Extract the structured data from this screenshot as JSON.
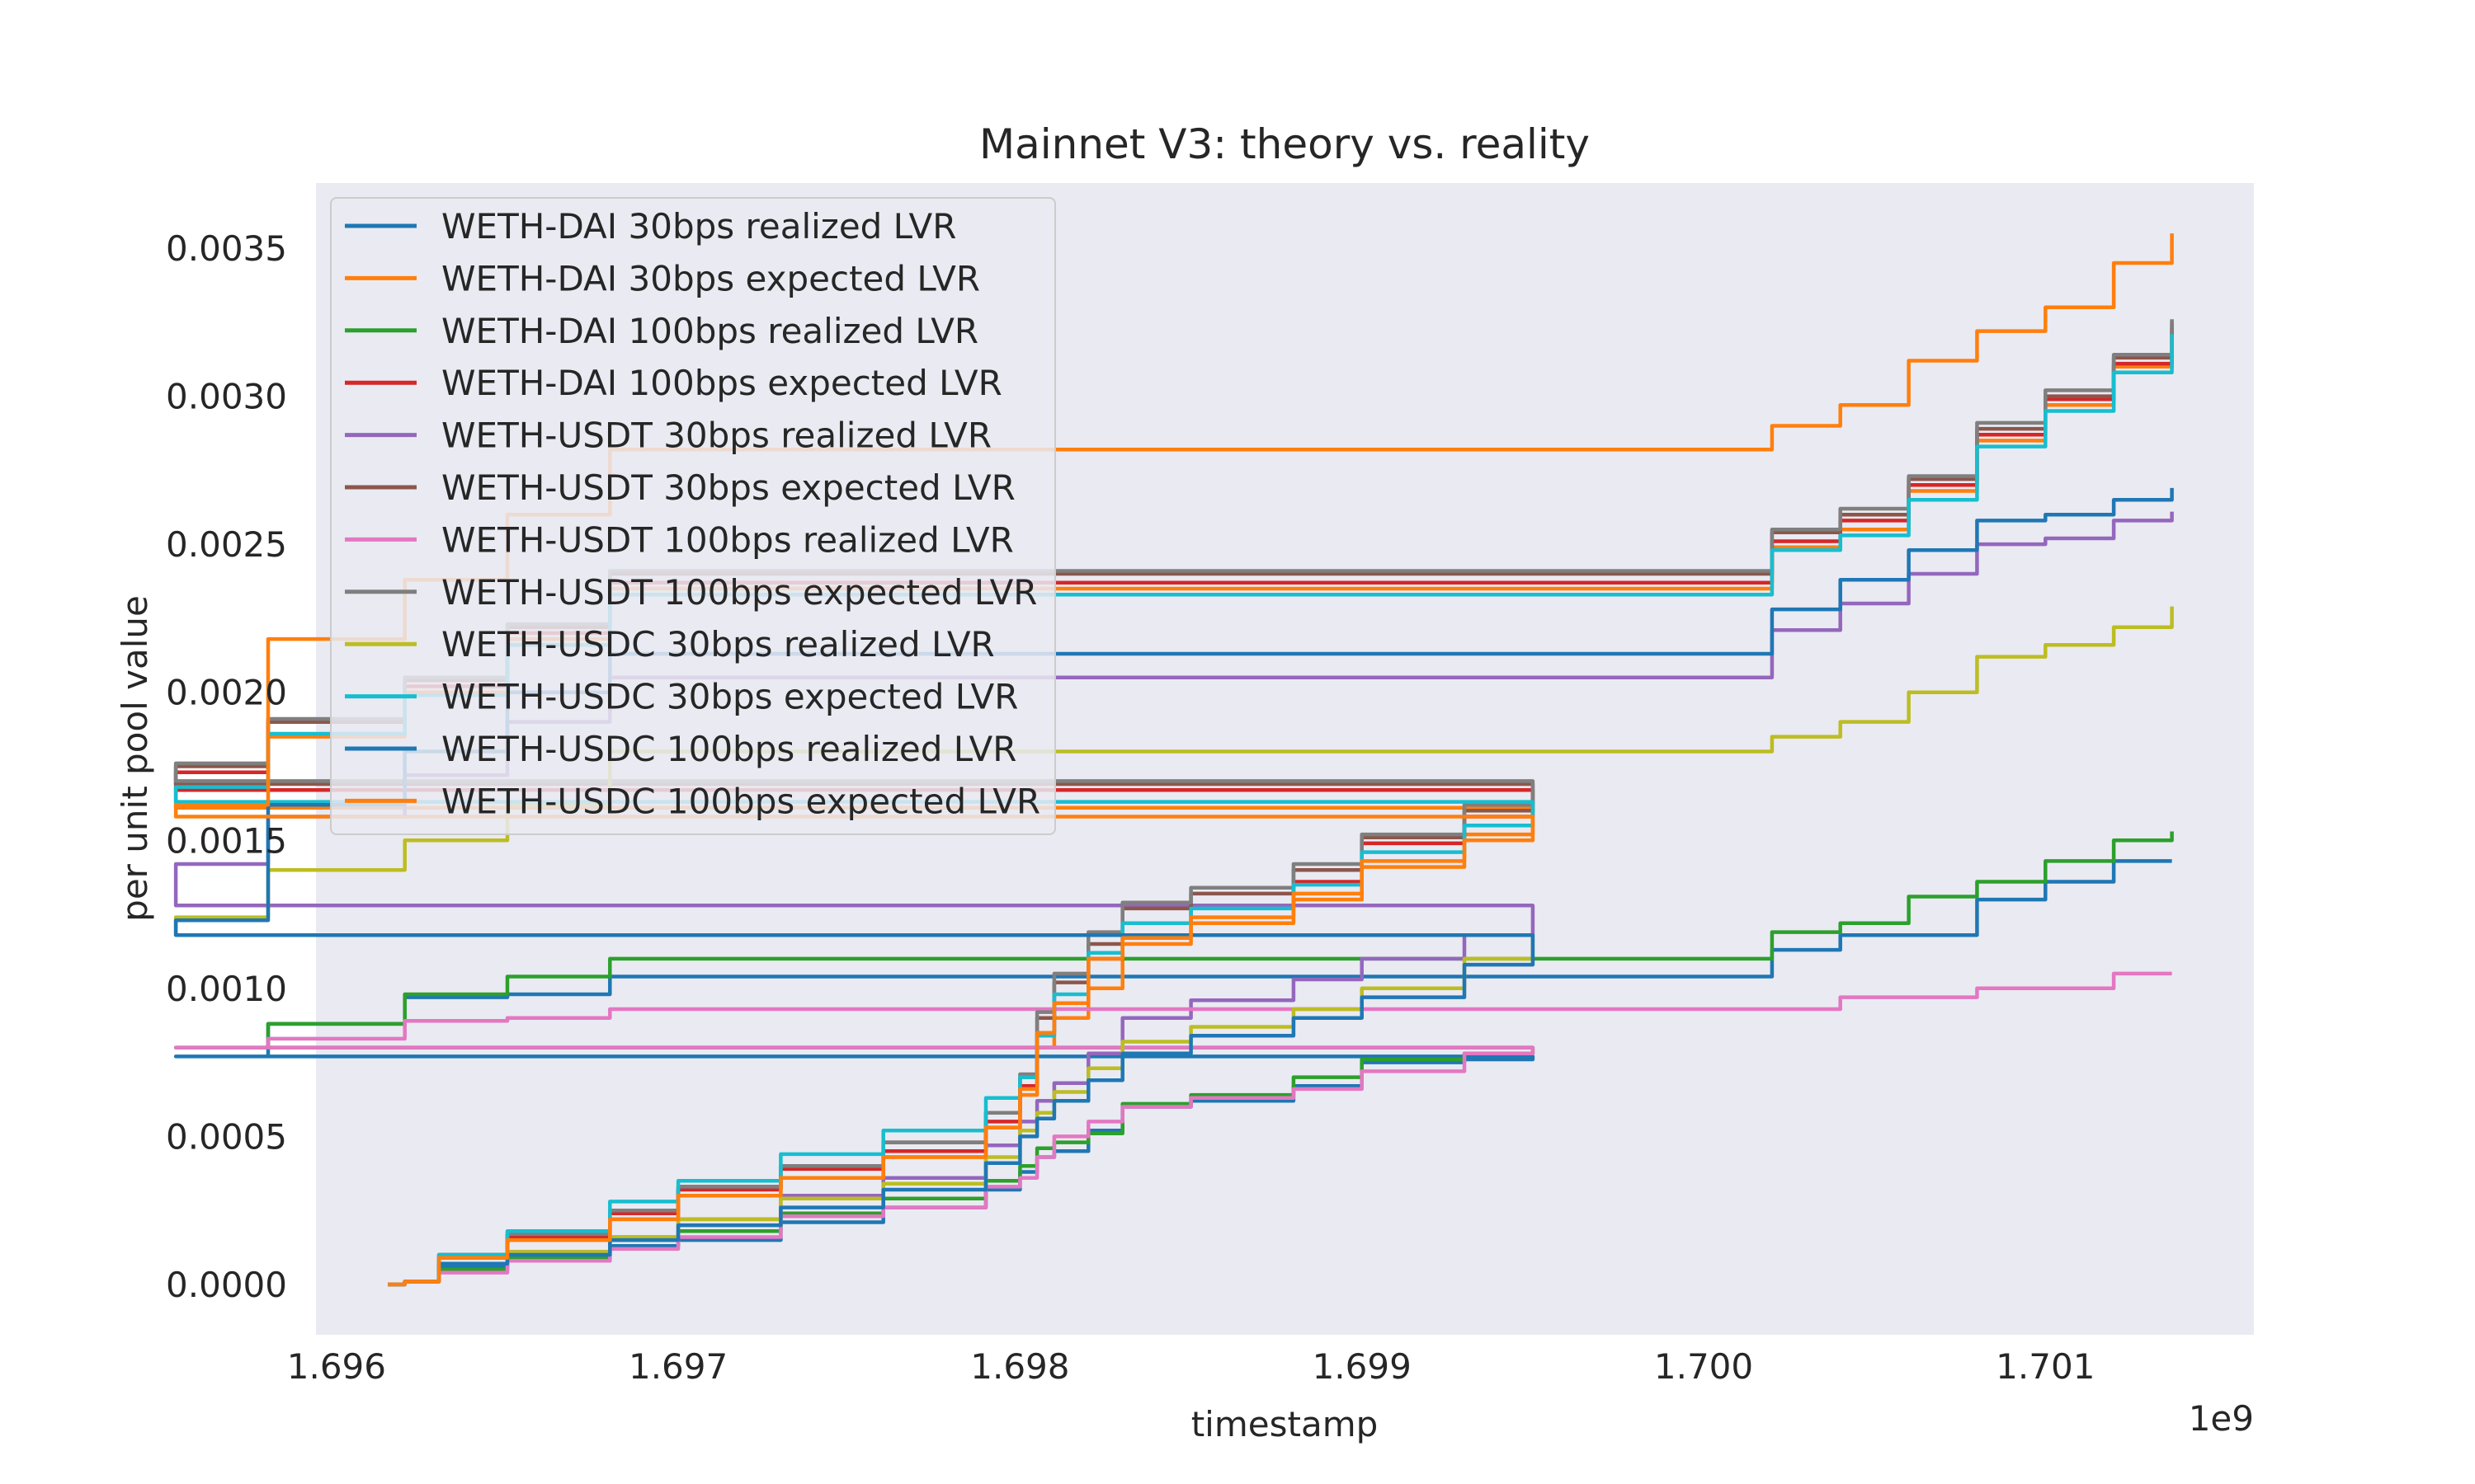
{
  "chart_data": {
    "type": "line",
    "title": "Mainnet V3: theory vs. reality",
    "xlabel": "timestamp",
    "ylabel": "per unit pool value",
    "x_offset_label": "1e9",
    "xlim": [
      1.69594,
      1.70161
    ],
    "ylim": [
      -0.00017,
      0.00372
    ],
    "x_ticks": [
      1.696,
      1.697,
      1.698,
      1.699,
      1.7,
      1.701
    ],
    "x_tick_labels": [
      "1.696",
      "1.697",
      "1.698",
      "1.699",
      "1.700",
      "1.701"
    ],
    "y_ticks": [
      0.0,
      0.0005,
      0.001,
      0.0015,
      0.002,
      0.0025,
      0.003,
      0.0035
    ],
    "y_tick_labels": [
      "0.0000",
      "0.0005",
      "0.0010",
      "0.0015",
      "0.0020",
      "0.0025",
      "0.0030",
      "0.0035"
    ],
    "grid": false,
    "legend_position": "top-left",
    "x": [
      1.69615,
      1.6962,
      1.6963,
      1.6965,
      1.6968,
      1.697,
      1.6973,
      1.6976,
      1.6979,
      1.698,
      1.69805,
      1.6981,
      1.6982,
      1.6983,
      1.6985,
      1.6988,
      1.699,
      1.6993,
      1.6995,
      1.69553,
      1.6958,
      1.6962,
      1.6965,
      1.6968,
      1.7002,
      1.7004,
      1.7006,
      1.7008,
      1.701,
      1.7012,
      1.70137
    ],
    "series": [
      {
        "name": "WETH-DAI 30bps realized LVR",
        "color": "#1f77b4",
        "values": [
          0,
          1e-05,
          6e-05,
          8e-05,
          0.00013,
          0.00015,
          0.00021,
          0.00026,
          0.00032,
          0.00038,
          0.00043,
          0.00045,
          0.00052,
          0.0006,
          0.00062,
          0.00067,
          0.00075,
          0.00076,
          0.00077,
          0.00077,
          0.00088,
          0.00097,
          0.00098,
          0.00104,
          0.00113,
          0.00118,
          0.00118,
          0.0013,
          0.00136,
          0.00143,
          0.00143
        ]
      },
      {
        "name": "WETH-DAI 30bps expected LVR",
        "color": "#ff7f0e",
        "values": [
          0,
          1e-05,
          9e-05,
          0.00015,
          0.00022,
          0.0003,
          0.00036,
          0.00043,
          0.00053,
          0.00064,
          0.0008,
          0.0009,
          0.001,
          0.00115,
          0.00122,
          0.0013,
          0.00141,
          0.00152,
          0.00161,
          0.00167,
          0.00185,
          0.002,
          0.00218,
          0.00235,
          0.00249,
          0.00255,
          0.00268,
          0.00285,
          0.00297,
          0.0031,
          0.00322
        ]
      },
      {
        "name": "WETH-DAI 100bps realized LVR",
        "color": "#2ca02c",
        "values": [
          0,
          1e-05,
          5e-05,
          9e-05,
          0.00015,
          0.00018,
          0.00024,
          0.00029,
          0.00035,
          0.0004,
          0.00046,
          0.00048,
          0.00051,
          0.00061,
          0.00064,
          0.0007,
          0.00076,
          0.00078,
          0.0008,
          0.0008,
          0.00088,
          0.00098,
          0.00104,
          0.0011,
          0.00119,
          0.00122,
          0.00131,
          0.00136,
          0.00143,
          0.0015,
          0.00153
        ]
      },
      {
        "name": "WETH-DAI 100bps expected LVR",
        "color": "#d62728",
        "values": [
          0,
          1e-05,
          9e-05,
          0.00016,
          0.00024,
          0.00032,
          0.00039,
          0.00045,
          0.00055,
          0.00067,
          0.00085,
          0.00095,
          0.0011,
          0.00122,
          0.00128,
          0.00136,
          0.00149,
          0.00158,
          0.00167,
          0.00173,
          0.0019,
          0.00202,
          0.0022,
          0.00237,
          0.00251,
          0.00258,
          0.0027,
          0.00287,
          0.00299,
          0.00311,
          0.00323
        ]
      },
      {
        "name": "WETH-USDT 30bps realized LVR",
        "color": "#9467bd",
        "values": [
          0,
          1e-05,
          7e-05,
          0.00011,
          0.00016,
          0.00022,
          0.0003,
          0.00036,
          0.00047,
          0.00055,
          0.00062,
          0.00068,
          0.00078,
          0.0009,
          0.00096,
          0.00103,
          0.0011,
          0.00118,
          0.00128,
          0.00142,
          0.00158,
          0.00172,
          0.0019,
          0.00205,
          0.00221,
          0.0023,
          0.0024,
          0.0025,
          0.00252,
          0.00258,
          0.00261
        ]
      },
      {
        "name": "WETH-USDT 30bps expected LVR",
        "color": "#8c564b",
        "values": [
          0,
          1e-05,
          0.0001,
          0.00017,
          0.00025,
          0.00033,
          0.0004,
          0.00048,
          0.00058,
          0.0007,
          0.0009,
          0.00102,
          0.00115,
          0.00127,
          0.00132,
          0.0014,
          0.00151,
          0.0016,
          0.00169,
          0.00175,
          0.0019,
          0.00204,
          0.00222,
          0.0024,
          0.00254,
          0.0026,
          0.00272,
          0.00289,
          0.003,
          0.00313,
          0.00325
        ]
      },
      {
        "name": "WETH-USDT 100bps realized LVR",
        "color": "#e377c2",
        "values": [
          0,
          1e-05,
          4e-05,
          8e-05,
          0.00012,
          0.00016,
          0.00023,
          0.00026,
          0.00033,
          0.00036,
          0.00043,
          0.0005,
          0.00055,
          0.0006,
          0.00063,
          0.00066,
          0.00072,
          0.00078,
          0.0008,
          0.0008,
          0.00083,
          0.00089,
          0.0009,
          0.00093,
          0.00093,
          0.00097,
          0.00097,
          0.001,
          0.001,
          0.00105,
          0.00105
        ]
      },
      {
        "name": "WETH-USDT 100bps expected LVR",
        "color": "#7f7f7f",
        "values": [
          0,
          1e-05,
          0.0001,
          0.00017,
          0.00025,
          0.00033,
          0.0004,
          0.00048,
          0.00058,
          0.00071,
          0.00092,
          0.00105,
          0.00119,
          0.00129,
          0.00134,
          0.00142,
          0.00152,
          0.00162,
          0.0017,
          0.00176,
          0.00191,
          0.00205,
          0.00223,
          0.00241,
          0.00255,
          0.00262,
          0.00273,
          0.00291,
          0.00302,
          0.00314,
          0.00326
        ]
      },
      {
        "name": "WETH-USDC 30bps realized LVR",
        "color": "#bcbd22",
        "values": [
          0,
          1e-05,
          7e-05,
          0.00011,
          0.00016,
          0.00022,
          0.00029,
          0.00034,
          0.00043,
          0.00052,
          0.00058,
          0.00065,
          0.00073,
          0.00082,
          0.00087,
          0.00093,
          0.001,
          0.0011,
          0.00118,
          0.00124,
          0.0014,
          0.0015,
          0.00162,
          0.0018,
          0.00185,
          0.0019,
          0.002,
          0.00212,
          0.00216,
          0.00222,
          0.00229
        ]
      },
      {
        "name": "WETH-USDC 30bps expected LVR",
        "color": "#17becf",
        "values": [
          0,
          1e-05,
          0.0001,
          0.00018,
          0.00028,
          0.00035,
          0.00044,
          0.00052,
          0.00063,
          0.0007,
          0.00084,
          0.00098,
          0.00112,
          0.00122,
          0.00127,
          0.00135,
          0.00146,
          0.00155,
          0.00163,
          0.00168,
          0.00186,
          0.00199,
          0.00216,
          0.00233,
          0.00248,
          0.00253,
          0.00265,
          0.00283,
          0.00295,
          0.00308,
          0.00321
        ]
      },
      {
        "name": "WETH-USDC 100bps realized LVR",
        "color": "#1f77b4",
        "values": [
          0,
          1e-05,
          7e-05,
          0.0001,
          0.00015,
          0.0002,
          0.00026,
          0.00032,
          0.00041,
          0.0005,
          0.00056,
          0.00062,
          0.00069,
          0.00078,
          0.00084,
          0.0009,
          0.00097,
          0.00108,
          0.00118,
          0.00123,
          0.00162,
          0.0018,
          0.002,
          0.00213,
          0.00228,
          0.00238,
          0.00248,
          0.00258,
          0.0026,
          0.00265,
          0.00269
        ]
      },
      {
        "name": "WETH-USDC 100bps expected LVR",
        "color": "#ff7f0e",
        "values": [
          0,
          1e-05,
          9e-05,
          0.00015,
          0.00022,
          0.0003,
          0.00036,
          0.00043,
          0.00053,
          0.00066,
          0.00085,
          0.00095,
          0.0011,
          0.00117,
          0.00124,
          0.00132,
          0.00143,
          0.0015,
          0.00158,
          0.00162,
          0.00218,
          0.00238,
          0.0026,
          0.00282,
          0.0029,
          0.00297,
          0.00312,
          0.00322,
          0.0033,
          0.00345,
          0.00355
        ]
      }
    ]
  }
}
